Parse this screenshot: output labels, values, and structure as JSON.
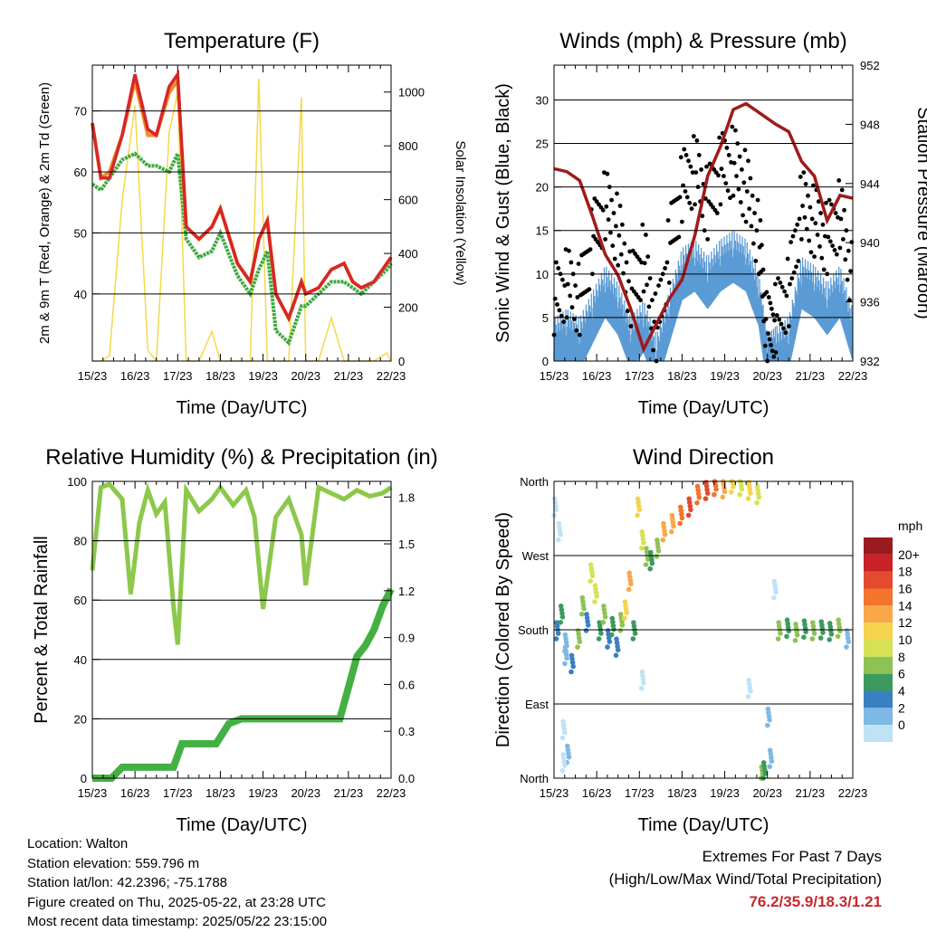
{
  "x_tick_labels": [
    "15/23",
    "16/23",
    "17/23",
    "18/23",
    "19/23",
    "20/23",
    "21/23",
    "22/23"
  ],
  "colors": {
    "temp_2m": "#d62728",
    "temp_9m": "#f08c2a",
    "dewpoint": "#3daa3d",
    "insolation": "#f5d84a",
    "wind": "#5b9bd5",
    "gust": "#000000",
    "pressure": "#a01a1a",
    "rh": "#8cc84b",
    "precip": "#44b044",
    "extremes": "#c8282e"
  },
  "chart_data": [
    {
      "id": "temperature",
      "type": "line",
      "title": "Temperature (F)",
      "xlabel": "Time (Day/UTC)",
      "ylabel_left": "2m & 9m T (Red, Orange) & 2m Td (Green)",
      "ylabel_right": "Solar Insolation (Yellow)",
      "ylim_left": [
        29,
        77.5
      ],
      "ylim_right": [
        0,
        1100
      ],
      "yticks_left": [
        40,
        50,
        60,
        70
      ],
      "yticks_right": [
        0,
        200,
        400,
        600,
        800,
        1000
      ],
      "grid": true,
      "x": [
        0,
        0.2,
        0.4,
        0.7,
        1.0,
        1.3,
        1.5,
        1.8,
        2.0,
        2.2,
        2.5,
        2.8,
        3.0,
        3.4,
        3.7,
        3.9,
        4.1,
        4.3,
        4.6,
        4.9,
        5.0,
        5.3,
        5.6,
        5.9,
        6.1,
        6.3,
        6.6,
        6.9,
        7.0
      ],
      "series": [
        {
          "name": "2m T",
          "values": [
            68,
            59,
            59,
            66,
            76,
            67,
            66,
            74,
            76,
            51,
            49,
            51,
            54,
            45,
            42,
            49,
            52,
            40,
            36,
            42,
            40,
            41,
            44,
            45,
            42,
            41,
            42,
            45,
            46
          ]
        },
        {
          "name": "9m T",
          "values": [
            68,
            59,
            60,
            66,
            75,
            66,
            66,
            73,
            75,
            51,
            49,
            51,
            54,
            45,
            42,
            49,
            52,
            40,
            36,
            42,
            40,
            41,
            44,
            45,
            42,
            41,
            42,
            45,
            46
          ]
        },
        {
          "name": "2m Td",
          "values": [
            58,
            57,
            59,
            62,
            63,
            61,
            61,
            60,
            63,
            49,
            46,
            47,
            50,
            43,
            40,
            44,
            47,
            34,
            32,
            38,
            38,
            40,
            42,
            42,
            41,
            40,
            42,
            44,
            45
          ]
        },
        {
          "name": "Solar Insolation",
          "values": [
            0,
            0,
            20,
            600,
            950,
            40,
            0,
            850,
            1000,
            0,
            0,
            110,
            0,
            0,
            0,
            1050,
            0,
            0,
            0,
            980,
            0,
            0,
            160,
            0,
            0,
            0,
            0,
            30,
            0
          ]
        }
      ]
    },
    {
      "id": "winds",
      "type": "line",
      "title": "Winds (mph) & Pressure (mb)",
      "xlabel": "Time (Day/UTC)",
      "ylabel_left": "Sonic Wind & Gust (Blue, Black)",
      "ylabel_right": "Station Pressure (Maroon)",
      "ylim_left": [
        0,
        34
      ],
      "ylim_right": [
        932,
        952
      ],
      "yticks_left": [
        0,
        5,
        10,
        15,
        20,
        25,
        30
      ],
      "yticks_right": [
        932,
        936,
        940,
        944,
        948,
        952
      ],
      "grid": true,
      "x": [
        0,
        0.3,
        0.6,
        0.9,
        1.2,
        1.5,
        1.8,
        2.1,
        2.4,
        2.7,
        3.0,
        3.3,
        3.6,
        3.9,
        4.2,
        4.5,
        4.8,
        5.0,
        5.2,
        5.5,
        5.8,
        6.1,
        6.4,
        6.7,
        7.0
      ],
      "series": [
        {
          "name": "Sonic Wind",
          "values": [
            3,
            4,
            3,
            6,
            9,
            7,
            3,
            5,
            1,
            6,
            11,
            12,
            10,
            12,
            13,
            12,
            8,
            1,
            2,
            3,
            10,
            9,
            7,
            9,
            4
          ]
        },
        {
          "name": "Gust",
          "values": [
            7,
            9,
            7,
            14,
            18,
            15,
            8,
            12,
            3,
            13,
            20,
            22,
            18,
            22,
            23,
            20,
            14,
            3,
            5,
            8,
            18,
            16,
            14,
            17,
            9
          ]
        },
        {
          "name": "Station Pressure",
          "values": [
            945,
            944.8,
            944.2,
            941.8,
            939.2,
            937.8,
            935.5,
            932.8,
            934.5,
            936.2,
            937.5,
            940.5,
            944.5,
            946.5,
            949,
            949.4,
            948.8,
            948.4,
            948,
            947.5,
            945.5,
            944.5,
            941.5,
            943.2,
            943
          ]
        }
      ]
    },
    {
      "id": "humidity",
      "type": "line",
      "title": "Relative Humidity (%) & Precipitation (in)",
      "xlabel": "Time (Day/UTC)",
      "ylabel_left": "Percent & Total Rainfall",
      "ylim_left": [
        0,
        100
      ],
      "ylim_right": [
        0,
        1.9
      ],
      "yticks_left": [
        0,
        20,
        40,
        60,
        80,
        100
      ],
      "yticks_right": [
        0.0,
        0.3,
        0.6,
        0.9,
        1.2,
        1.5,
        1.8
      ],
      "grid": true,
      "x": [
        0,
        0.2,
        0.4,
        0.7,
        0.9,
        1.1,
        1.3,
        1.5,
        1.7,
        1.9,
        2.0,
        2.2,
        2.5,
        2.8,
        3.0,
        3.3,
        3.6,
        3.8,
        4.0,
        4.3,
        4.6,
        4.9,
        5.0,
        5.3,
        5.6,
        5.9,
        6.2,
        6.5,
        6.8,
        7.0
      ],
      "series": [
        {
          "name": "Relative Humidity",
          "values": [
            70,
            98,
            99,
            94,
            62,
            86,
            97,
            89,
            93,
            58,
            45,
            97,
            90,
            94,
            98,
            92,
            97,
            88,
            57,
            88,
            94,
            82,
            65,
            98,
            96,
            94,
            97,
            95,
            96,
            98
          ]
        },
        {
          "name": "Total Precipitation",
          "x": [
            0,
            0.45,
            0.7,
            1.3,
            1.6,
            1.9,
            2.1,
            2.4,
            2.6,
            2.9,
            3.2,
            3.5,
            4.0,
            4.5,
            5.0,
            5.5,
            5.8,
            6.0,
            6.2,
            6.4,
            6.6,
            6.8,
            7.0
          ],
          "values": [
            0,
            0,
            0.07,
            0.07,
            0.07,
            0.07,
            0.22,
            0.22,
            0.22,
            0.22,
            0.35,
            0.38,
            0.38,
            0.38,
            0.38,
            0.38,
            0.38,
            0.58,
            0.78,
            0.85,
            0.95,
            1.1,
            1.21
          ]
        }
      ]
    },
    {
      "id": "direction",
      "type": "scatter",
      "title": "Wind Direction",
      "xlabel": "Time (Day/UTC)",
      "ylabel_left": "Direction (Colored By Speed)",
      "ylim_left": [
        0,
        360
      ],
      "yticks_left": [
        0,
        90,
        180,
        270,
        360
      ],
      "ytick_labels_left": [
        "North",
        "East",
        "South",
        "West",
        "North"
      ],
      "grid": true,
      "points": [
        [
          0.1,
          180,
          4
        ],
        [
          0.2,
          200,
          6
        ],
        [
          0.3,
          165,
          3
        ],
        [
          0.3,
          150,
          2
        ],
        [
          0.45,
          140,
          4
        ],
        [
          0.6,
          170,
          8
        ],
        [
          0.7,
          210,
          9
        ],
        [
          0.8,
          190,
          4
        ],
        [
          0.9,
          250,
          10
        ],
        [
          1.0,
          225,
          11
        ],
        [
          1.1,
          180,
          6
        ],
        [
          1.2,
          200,
          8
        ],
        [
          1.3,
          170,
          5
        ],
        [
          1.4,
          185,
          7
        ],
        [
          1.5,
          160,
          4
        ],
        [
          1.6,
          190,
          8
        ],
        [
          1.7,
          205,
          12
        ],
        [
          1.8,
          240,
          14
        ],
        [
          1.9,
          180,
          6
        ],
        [
          2.0,
          330,
          12
        ],
        [
          2.1,
          290,
          10
        ],
        [
          2.2,
          270,
          8
        ],
        [
          2.3,
          265,
          7
        ],
        [
          2.45,
          280,
          9
        ],
        [
          2.6,
          300,
          14
        ],
        [
          2.8,
          310,
          15
        ],
        [
          3.0,
          320,
          16
        ],
        [
          3.2,
          330,
          18
        ],
        [
          3.4,
          345,
          17
        ],
        [
          3.6,
          350,
          19
        ],
        [
          3.8,
          355,
          16
        ],
        [
          4.0,
          352,
          15
        ],
        [
          4.2,
          358,
          13
        ],
        [
          4.4,
          355,
          10
        ],
        [
          4.6,
          350,
          12
        ],
        [
          4.8,
          345,
          11
        ],
        [
          4.9,
          5,
          9
        ],
        [
          4.95,
          10,
          6
        ],
        [
          5.1,
          25,
          3
        ],
        [
          5.3,
          180,
          8
        ],
        [
          5.5,
          183,
          7
        ],
        [
          5.7,
          178,
          8
        ],
        [
          5.9,
          182,
          6
        ],
        [
          6.1,
          180,
          9
        ],
        [
          6.3,
          181,
          7
        ],
        [
          6.5,
          179,
          6
        ],
        [
          6.7,
          183,
          8
        ],
        [
          6.9,
          170,
          3
        ],
        [
          0.05,
          330,
          1
        ],
        [
          0.15,
          300,
          1
        ],
        [
          0.25,
          60,
          1
        ],
        [
          0.35,
          30,
          2
        ],
        [
          0.25,
          20,
          1
        ],
        [
          4.6,
          110,
          1
        ],
        [
          5.2,
          230,
          1
        ],
        [
          5.05,
          75,
          2
        ],
        [
          2.1,
          120,
          1
        ]
      ],
      "colorbar": {
        "title": "mph",
        "labels": [
          "20+",
          "18",
          "16",
          "14",
          "12",
          "10",
          "8",
          "6",
          "4",
          "2",
          "0"
        ],
        "colors": [
          "#9a1b1e",
          "#c82128",
          "#e34a2e",
          "#f2742d",
          "#f9a847",
          "#f4d34e",
          "#d6e254",
          "#8fc254",
          "#3c9a5e",
          "#3b7fc3",
          "#7eb9e6",
          "#bfe2f5"
        ]
      }
    }
  ],
  "info": {
    "location": "Location: Walton",
    "elevation": "Station elevation: 559.796 m",
    "latlon": "Station lat/lon: 42.2396; -75.1788",
    "created": "Figure created on Thu, 2025-05-22, at 23:28 UTC",
    "timestamp": "Most recent data timestamp: 2025/05/22 23:15:00",
    "extremes_title": "Extremes For Past 7 Days",
    "extremes_subtitle": "(High/Low/Max Wind/Total Precipitation)",
    "extremes_values": "76.2/35.9/18.3/1.21"
  }
}
